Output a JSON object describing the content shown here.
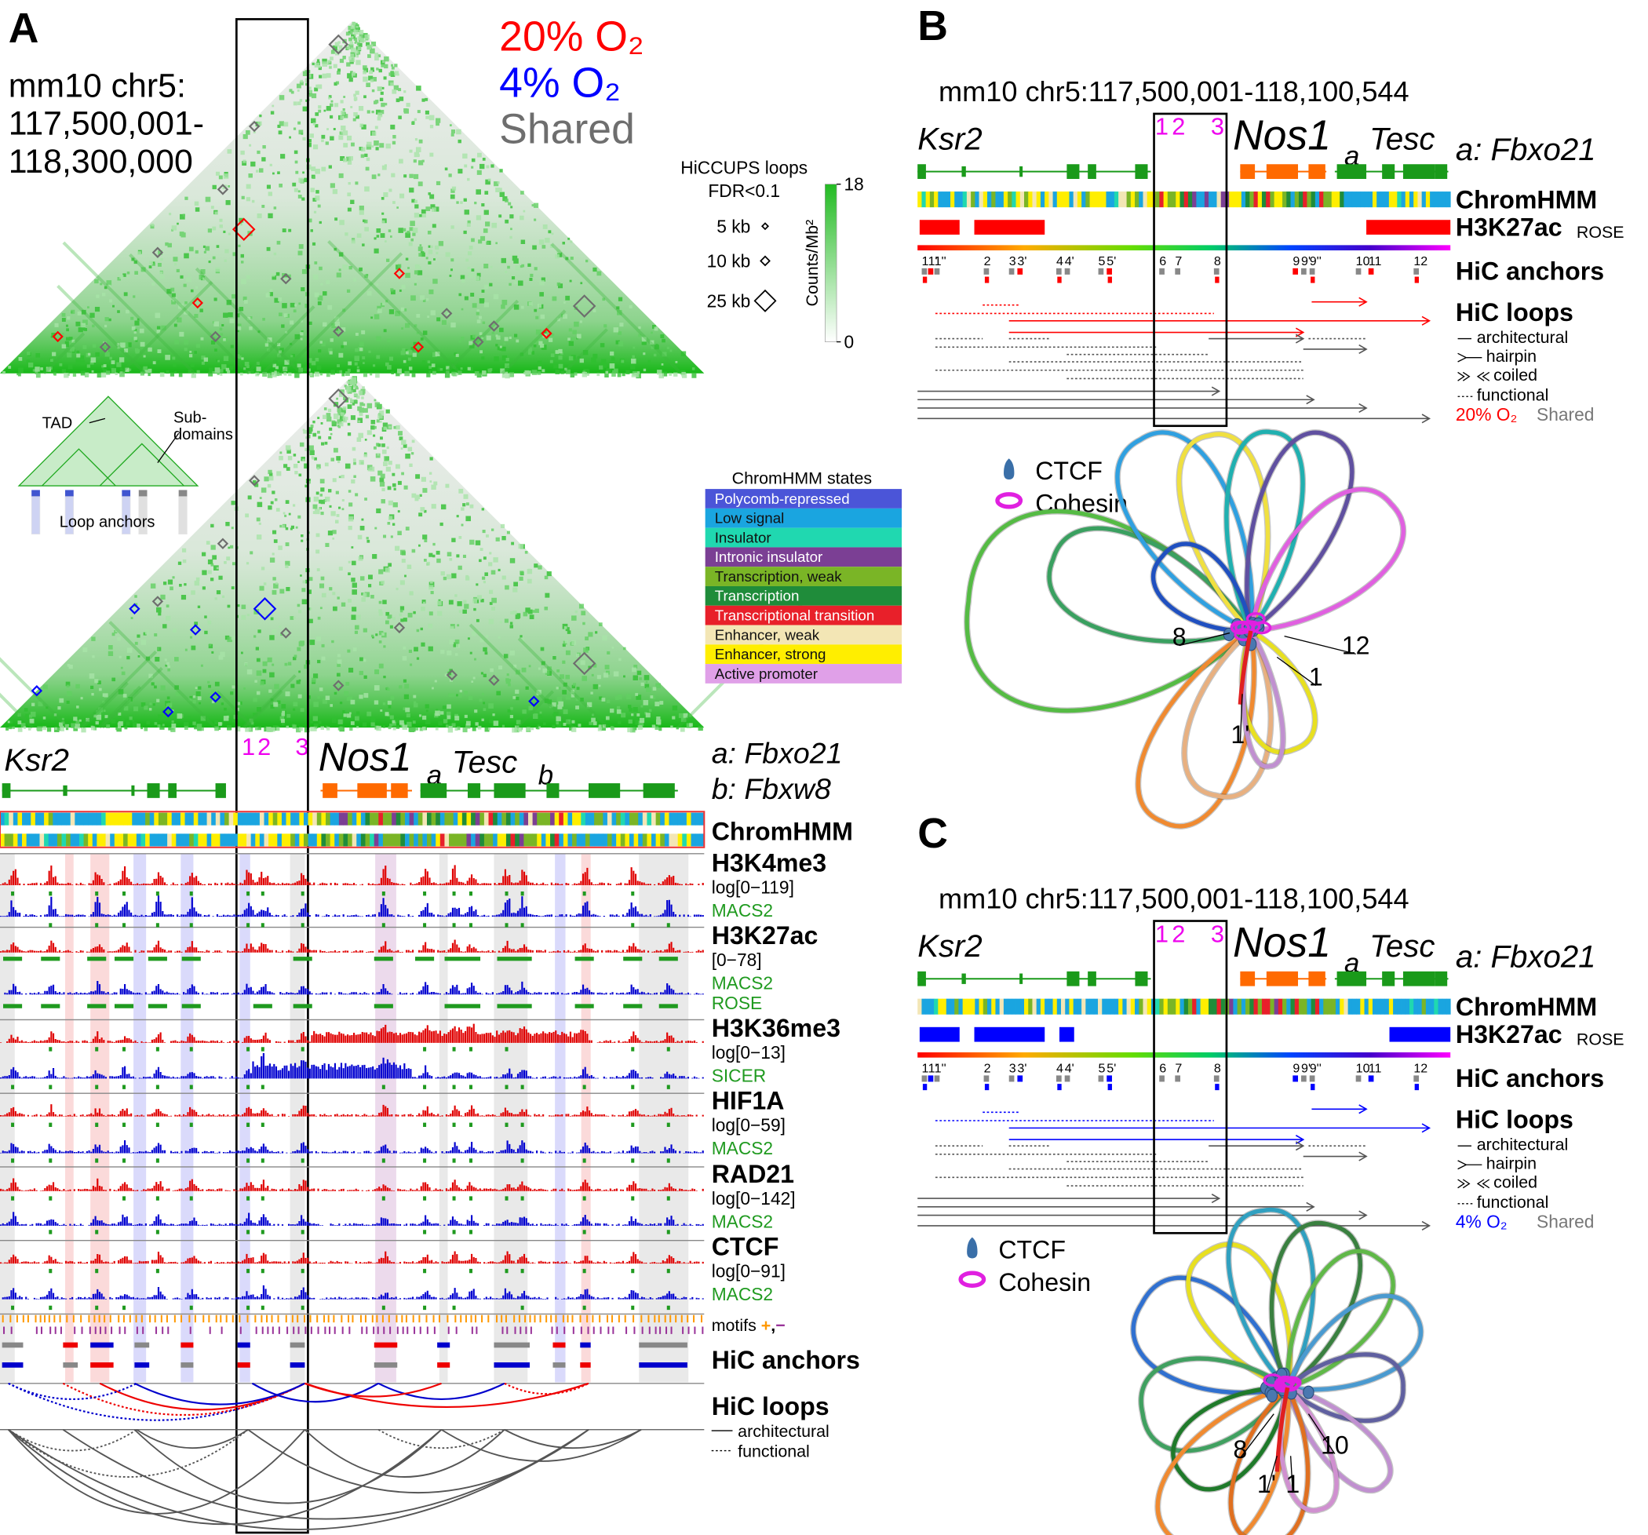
{
  "panel_a": {
    "label": "A",
    "locus": [
      "mm10 chr5:",
      "117,500,001-",
      "118,300,000"
    ],
    "conditions": [
      {
        "name": "20% O₂",
        "color": "#ff0000"
      },
      {
        "name": "4% O₂",
        "color": "#0000ff"
      },
      {
        "name": "Shared",
        "color": "#6e6e6e"
      }
    ],
    "loop_legend": {
      "title": [
        "HiCCUPS loops",
        "FDR<0.1"
      ],
      "sizes": [
        "5 kb",
        "10 kb",
        "25 kb"
      ]
    },
    "colorbar": {
      "label": "Counts/Mb²",
      "lim": [
        0,
        18
      ],
      "ticks": [
        0,
        18
      ],
      "color": "#22bb22"
    },
    "schematic": [
      "TAD",
      "Sub-",
      "domains",
      "Loop anchors"
    ],
    "chromhmm_legend": {
      "title": "ChromHMM states",
      "states": [
        {
          "name": "Polycomb-repressed",
          "color": "#4b55d8"
        },
        {
          "name": "Low signal",
          "color": "#1aa5e0"
        },
        {
          "name": "Insulator",
          "color": "#20d8b0"
        },
        {
          "name": "Intronic insulator",
          "color": "#7b3f94"
        },
        {
          "name": "Transcription, weak",
          "color": "#7ab526"
        },
        {
          "name": "Transcription",
          "color": "#1f8c3a"
        },
        {
          "name": "Transcriptional transition",
          "color": "#e8202a"
        },
        {
          "name": "Enhancer, weak",
          "color": "#f3e6b5"
        },
        {
          "name": "Enhancer, strong",
          "color": "#ffee00"
        },
        {
          "name": "Active promoter",
          "color": "#e0a0e8"
        }
      ]
    },
    "genes": {
      "names": [
        "Ksr2",
        "Nos1",
        "a",
        "Tesc",
        "b"
      ],
      "key": [
        "a: Fbxo21",
        "b: Fbxw8"
      ],
      "box_numbers": [
        "1",
        "2",
        "3"
      ]
    },
    "tracks": [
      {
        "name": "ChromHMM"
      },
      {
        "name": "H3K4me3",
        "scale": "log[0−119]",
        "calls": [
          "MACS2"
        ]
      },
      {
        "name": "H3K27ac",
        "scale": "[0−78]",
        "calls": [
          "MACS2",
          "ROSE"
        ]
      },
      {
        "name": "H3K36me3",
        "scale": "log[0−13]",
        "calls": [
          "SICER"
        ]
      },
      {
        "name": "HIF1A",
        "scale": "log[0−59]",
        "calls": [
          "MACS2"
        ]
      },
      {
        "name": "RAD21",
        "scale": "log[0−142]",
        "calls": [
          "MACS2"
        ]
      },
      {
        "name": "CTCF",
        "scale": "log[0−91]",
        "calls": [
          "MACS2"
        ]
      }
    ],
    "motifs": [
      {
        "text": "motifs ",
        "color": "#000000"
      },
      {
        "text": "+",
        "color": "#ff9900"
      },
      {
        "text": ",",
        "color": "#000000"
      },
      {
        "text": "−",
        "color": "#993399"
      }
    ],
    "anchors": "HiC anchors",
    "loops": {
      "title": "HiC loops",
      "types": [
        "architectural",
        "functional"
      ]
    }
  },
  "panel_b": {
    "label": "B",
    "title": "mm10 chr5:117,500,001-118,100,544",
    "genes": [
      "Ksr2",
      "Nos1",
      "a",
      "Tesc"
    ],
    "key": "a: Fbxo21",
    "box_numbers": [
      "1",
      "2",
      "3"
    ],
    "tracks": [
      "ChromHMM",
      "H3K27ac",
      "HiC anchors",
      "HiC loops"
    ],
    "rose": "ROSE",
    "anchor_labels": [
      "1",
      "1'",
      "1''",
      "2",
      "3",
      "3'",
      "4",
      "4'",
      "5",
      "5'",
      "6",
      "7",
      "8",
      "9",
      "9'",
      "9''",
      "10",
      "11",
      "12"
    ],
    "loop_types": [
      "architectural",
      "hairpin",
      "coiled",
      "functional"
    ],
    "condition": {
      "name": "20% O₂",
      "color": "#ff0000"
    },
    "shared": "Shared",
    "proteins": [
      "CTCF",
      "Cohesin"
    ],
    "structure_labels": [
      "8",
      "12",
      "1",
      "1'"
    ]
  },
  "panel_c": {
    "label": "C",
    "title": "mm10 chr5:117,500,001-118,100,544",
    "genes": [
      "Ksr2",
      "Nos1",
      "a",
      "Tesc"
    ],
    "key": "a: Fbxo21",
    "box_numbers": [
      "1",
      "2",
      "3"
    ],
    "tracks": [
      "ChromHMM",
      "H3K27ac",
      "HiC anchors",
      "HiC loops"
    ],
    "rose": "ROSE",
    "anchor_labels": [
      "1",
      "1'",
      "1''",
      "2",
      "3",
      "3'",
      "4",
      "4'",
      "5",
      "5'",
      "6",
      "7",
      "8",
      "9",
      "9'",
      "9''",
      "10",
      "11",
      "12"
    ],
    "loop_types": [
      "architectural",
      "hairpin",
      "coiled",
      "functional"
    ],
    "condition": {
      "name": "4% O₂",
      "color": "#0000ff"
    },
    "shared": "Shared",
    "proteins": [
      "CTCF",
      "Cohesin"
    ],
    "structure_labels": [
      "8",
      "10",
      "1'",
      "1"
    ]
  }
}
